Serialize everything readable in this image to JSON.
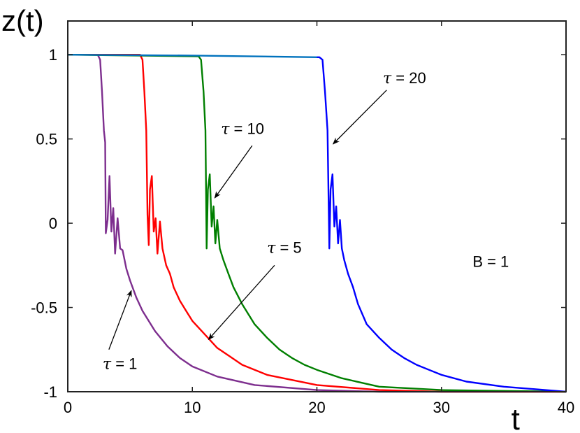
{
  "chart_data": {
    "type": "line",
    "title": "",
    "xlabel": "t",
    "ylabel": "z(t)",
    "xlim": [
      0,
      40
    ],
    "ylim": [
      -1,
      1.2
    ],
    "xticks": [
      0,
      10,
      20,
      30,
      40
    ],
    "xtick_labels": [
      "0",
      "10",
      "20",
      "30",
      "40"
    ],
    "yticks": [
      -1,
      -0.5,
      0,
      0.5,
      1
    ],
    "ytick_labels": [
      "-1",
      "-0.5",
      "0",
      "0.5",
      "1"
    ],
    "grid": false,
    "legend": "none",
    "series": [
      {
        "color": "#7d2e8e",
        "x": [
          0,
          2.4,
          2.6,
          2.75,
          2.9,
          3.0,
          3.05,
          3.2,
          3.35,
          3.5,
          3.65,
          3.8,
          4.0,
          4.2,
          4.4,
          4.7,
          5.0,
          5.5,
          6,
          7,
          8,
          9,
          10,
          12,
          15,
          20,
          25,
          30,
          40
        ],
        "values": [
          1.0,
          1.0,
          0.97,
          0.78,
          0.55,
          0.48,
          -0.06,
          0.02,
          0.28,
          -0.05,
          0.09,
          -0.18,
          0.03,
          -0.15,
          -0.16,
          -0.27,
          -0.34,
          -0.44,
          -0.52,
          -0.64,
          -0.73,
          -0.8,
          -0.85,
          -0.91,
          -0.96,
          -0.99,
          -1.0,
          -1.0,
          -1.0
        ]
      },
      {
        "color": "#ff0000",
        "x": [
          0,
          5.8,
          6.0,
          6.15,
          6.3,
          6.4,
          6.5,
          6.6,
          6.75,
          6.9,
          7.05,
          7.2,
          7.4,
          7.6,
          7.9,
          8.2,
          8.5,
          9,
          9.5,
          10,
          11,
          12,
          13,
          14,
          16,
          20,
          25,
          30,
          40
        ],
        "values": [
          1.0,
          1.0,
          0.97,
          0.78,
          0.55,
          0.05,
          -0.13,
          0.2,
          0.28,
          -0.05,
          0.03,
          -0.18,
          0.01,
          -0.15,
          -0.25,
          -0.3,
          -0.38,
          -0.46,
          -0.52,
          -0.58,
          -0.66,
          -0.74,
          -0.79,
          -0.84,
          -0.9,
          -0.96,
          -0.99,
          -1.0,
          -1.0
        ]
      },
      {
        "color": "#007f00",
        "x": [
          0,
          10.5,
          10.7,
          10.9,
          11.05,
          11.15,
          11.25,
          11.4,
          11.55,
          11.7,
          11.85,
          12.0,
          12.2,
          12.5,
          12.9,
          13.3,
          14,
          15,
          16,
          17,
          18,
          19,
          20,
          22,
          25,
          30,
          40
        ],
        "values": [
          1.0,
          0.99,
          0.97,
          0.78,
          0.55,
          -0.15,
          0.2,
          0.29,
          -0.02,
          0.1,
          -0.12,
          0.02,
          -0.15,
          -0.22,
          -0.3,
          -0.38,
          -0.48,
          -0.6,
          -0.68,
          -0.75,
          -0.8,
          -0.84,
          -0.87,
          -0.92,
          -0.97,
          -0.99,
          -1.0
        ]
      },
      {
        "color": "#0072bd",
        "x": [
          0,
          10,
          20
        ],
        "values": [
          1.0,
          0.995,
          0.985
        ]
      },
      {
        "color": "#0000ff",
        "x": [
          20,
          20.2,
          20.45,
          20.65,
          20.85,
          21.0,
          21.1,
          21.25,
          21.4,
          21.55,
          21.7,
          21.85,
          22.0,
          22.2,
          22.5,
          22.9,
          23.3,
          24,
          25,
          26,
          27,
          28,
          29,
          30,
          32,
          35,
          40
        ],
        "values": [
          0.985,
          0.985,
          0.97,
          0.78,
          0.55,
          -0.15,
          0.2,
          0.29,
          -0.02,
          0.1,
          -0.12,
          0.02,
          -0.15,
          -0.22,
          -0.3,
          -0.38,
          -0.48,
          -0.6,
          -0.68,
          -0.75,
          -0.8,
          -0.84,
          -0.87,
          -0.9,
          -0.94,
          -0.97,
          -1.0
        ]
      }
    ],
    "annotations": [
      {
        "symbol": "τ",
        "text": " = 1",
        "text_x": 2.8,
        "text_y": -0.865,
        "arrow_from": [
          3.3,
          -0.75
        ],
        "arrow_to": [
          5.1,
          -0.4
        ]
      },
      {
        "symbol": "τ",
        "text": " = 5",
        "text_x": 16.0,
        "text_y": -0.175,
        "arrow_from": [
          16.6,
          -0.25
        ],
        "arrow_to": [
          11.3,
          -0.69
        ]
      },
      {
        "symbol": "τ",
        "text": " = 10",
        "text_x": 12.3,
        "text_y": 0.53,
        "arrow_from": [
          14.8,
          0.46
        ],
        "arrow_to": [
          11.8,
          0.15
        ]
      },
      {
        "symbol": "τ",
        "text": " = 20",
        "text_x": 25.3,
        "text_y": 0.83,
        "arrow_from": [
          25.6,
          0.79
        ],
        "arrow_to": [
          21.3,
          0.47
        ]
      },
      {
        "symbol": "",
        "text": "B = 1",
        "text_x": 32.5,
        "text_y": -0.26,
        "arrow_from": null,
        "arrow_to": null
      }
    ]
  }
}
